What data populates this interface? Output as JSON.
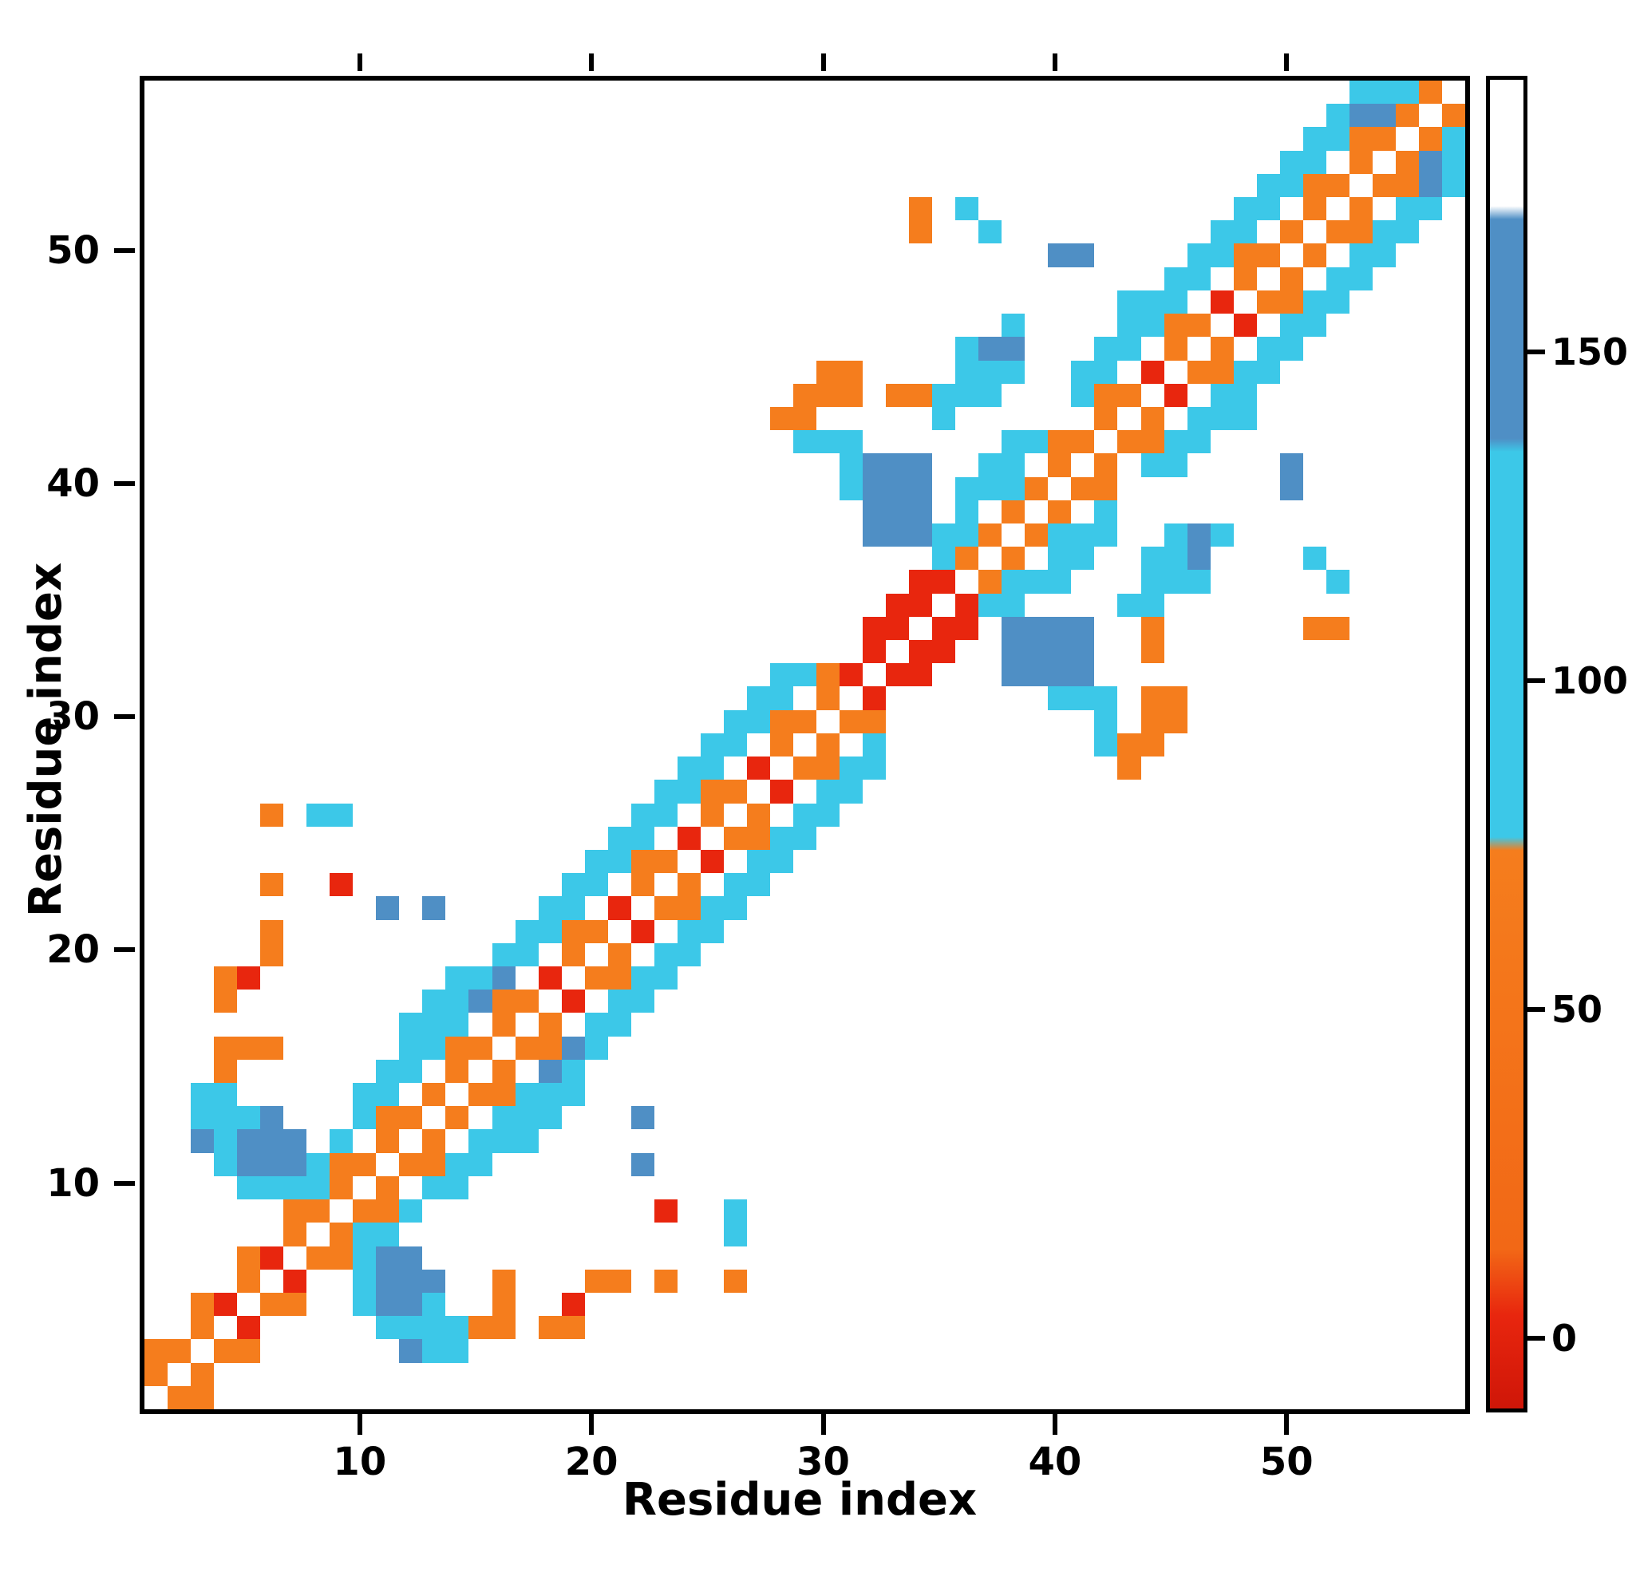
{
  "chart_data": {
    "type": "heatmap",
    "title": "",
    "xlabel": "Residue index",
    "ylabel": "Residue index",
    "n_residues": 57,
    "x_ticks": [
      10,
      20,
      30,
      40,
      50
    ],
    "y_ticks": [
      10,
      20,
      30,
      40,
      50
    ],
    "axis_range": [
      0.5,
      57.5
    ],
    "symmetric": true,
    "legend_position": "right-colorbar",
    "grid": false,
    "colors": {
      "r": "#e8260e",
      "o": "#f57d1d",
      "c": "#3cc8e8",
      "b": "#4f8fc5"
    },
    "color_value_ranges": {
      "r": "0-10",
      "o": "10-75",
      "c": "75-135",
      "b": "135-170",
      "white": "no contact"
    },
    "colorbar": {
      "ticks": [
        {
          "label": "150",
          "pos": 20.8
        },
        {
          "label": "100",
          "pos": 45.5
        },
        {
          "label": "50",
          "pos": 70.3
        },
        {
          "label": "0",
          "pos": 95.0
        }
      ],
      "gradient_stops": [
        [
          0,
          "#ffffff"
        ],
        [
          9.5,
          "#ffffff"
        ],
        [
          10.5,
          "#4f8fc5"
        ],
        [
          27,
          "#4f8fc5"
        ],
        [
          28,
          "#3cc8e8"
        ],
        [
          57,
          "#3cc8e8"
        ],
        [
          58,
          "#f57d1d"
        ],
        [
          88,
          "#f26816"
        ],
        [
          93,
          "#e8260e"
        ],
        [
          100,
          "#cf1608"
        ]
      ]
    },
    "cells": [
      [
        1,
        2,
        "o"
      ],
      [
        2,
        3,
        "o"
      ],
      [
        3,
        4,
        "o"
      ],
      [
        4,
        5,
        "r"
      ],
      [
        5,
        6,
        "o"
      ],
      [
        6,
        7,
        "r"
      ],
      [
        7,
        8,
        "o"
      ],
      [
        8,
        9,
        "o"
      ],
      [
        9,
        10,
        "o"
      ],
      [
        10,
        11,
        "o"
      ],
      [
        11,
        12,
        "o"
      ],
      [
        12,
        13,
        "o"
      ],
      [
        13,
        14,
        "o"
      ],
      [
        14,
        15,
        "o"
      ],
      [
        15,
        16,
        "o"
      ],
      [
        16,
        17,
        "o"
      ],
      [
        17,
        18,
        "o"
      ],
      [
        18,
        19,
        "r"
      ],
      [
        19,
        20,
        "o"
      ],
      [
        20,
        21,
        "o"
      ],
      [
        21,
        22,
        "r"
      ],
      [
        22,
        23,
        "o"
      ],
      [
        23,
        24,
        "o"
      ],
      [
        24,
        25,
        "r"
      ],
      [
        25,
        26,
        "o"
      ],
      [
        26,
        27,
        "o"
      ],
      [
        27,
        28,
        "r"
      ],
      [
        28,
        29,
        "o"
      ],
      [
        29,
        30,
        "o"
      ],
      [
        30,
        31,
        "o"
      ],
      [
        31,
        32,
        "r"
      ],
      [
        32,
        33,
        "r"
      ],
      [
        33,
        34,
        "r"
      ],
      [
        34,
        35,
        "r"
      ],
      [
        35,
        36,
        "r"
      ],
      [
        36,
        37,
        "o"
      ],
      [
        37,
        38,
        "o"
      ],
      [
        38,
        39,
        "o"
      ],
      [
        39,
        40,
        "o"
      ],
      [
        40,
        41,
        "o"
      ],
      [
        41,
        42,
        "o"
      ],
      [
        42,
        43,
        "o"
      ],
      [
        43,
        44,
        "o"
      ],
      [
        44,
        45,
        "r"
      ],
      [
        45,
        46,
        "o"
      ],
      [
        46,
        47,
        "o"
      ],
      [
        47,
        48,
        "r"
      ],
      [
        48,
        49,
        "o"
      ],
      [
        49,
        50,
        "o"
      ],
      [
        50,
        51,
        "o"
      ],
      [
        51,
        52,
        "o"
      ],
      [
        52,
        53,
        "o"
      ],
      [
        53,
        54,
        "o"
      ],
      [
        54,
        55,
        "o"
      ],
      [
        55,
        56,
        "o"
      ],
      [
        56,
        57,
        "o"
      ],
      [
        1,
        3,
        "o"
      ],
      [
        3,
        5,
        "o"
      ],
      [
        5,
        7,
        "o"
      ],
      [
        7,
        9,
        "o"
      ],
      [
        9,
        11,
        "o"
      ],
      [
        11,
        13,
        "o"
      ],
      [
        14,
        16,
        "o"
      ],
      [
        16,
        18,
        "o"
      ],
      [
        19,
        21,
        "o"
      ],
      [
        22,
        24,
        "o"
      ],
      [
        25,
        27,
        "o"
      ],
      [
        28,
        30,
        "o"
      ],
      [
        30,
        32,
        "o"
      ],
      [
        32,
        34,
        "r"
      ],
      [
        33,
        35,
        "r"
      ],
      [
        34,
        36,
        "r"
      ],
      [
        35,
        37,
        "c"
      ],
      [
        36,
        38,
        "c"
      ],
      [
        38,
        40,
        "c"
      ],
      [
        40,
        42,
        "o"
      ],
      [
        42,
        44,
        "o"
      ],
      [
        45,
        47,
        "o"
      ],
      [
        48,
        50,
        "o"
      ],
      [
        51,
        53,
        "o"
      ],
      [
        53,
        55,
        "o"
      ],
      [
        54,
        56,
        "b"
      ],
      [
        55,
        57,
        "c"
      ],
      [
        9,
        12,
        "c"
      ],
      [
        10,
        13,
        "c"
      ],
      [
        11,
        14,
        "c"
      ],
      [
        12,
        15,
        "c"
      ],
      [
        14,
        17,
        "c"
      ],
      [
        15,
        18,
        "b"
      ],
      [
        16,
        19,
        "b"
      ],
      [
        17,
        20,
        "c"
      ],
      [
        18,
        21,
        "c"
      ],
      [
        19,
        22,
        "c"
      ],
      [
        20,
        23,
        "c"
      ],
      [
        21,
        24,
        "c"
      ],
      [
        22,
        25,
        "c"
      ],
      [
        23,
        26,
        "c"
      ],
      [
        24,
        27,
        "c"
      ],
      [
        25,
        28,
        "c"
      ],
      [
        26,
        29,
        "c"
      ],
      [
        27,
        30,
        "c"
      ],
      [
        28,
        31,
        "c"
      ],
      [
        29,
        32,
        "c"
      ],
      [
        35,
        38,
        "c"
      ],
      [
        36,
        39,
        "c"
      ],
      [
        37,
        40,
        "c"
      ],
      [
        38,
        41,
        "c"
      ],
      [
        39,
        42,
        "c"
      ],
      [
        41,
        44,
        "c"
      ],
      [
        42,
        45,
        "c"
      ],
      [
        43,
        46,
        "c"
      ],
      [
        44,
        47,
        "c"
      ],
      [
        45,
        48,
        "c"
      ],
      [
        46,
        49,
        "c"
      ],
      [
        47,
        50,
        "c"
      ],
      [
        48,
        51,
        "c"
      ],
      [
        49,
        52,
        "c"
      ],
      [
        50,
        53,
        "c"
      ],
      [
        51,
        54,
        "c"
      ],
      [
        52,
        55,
        "c"
      ],
      [
        53,
        56,
        "b"
      ],
      [
        54,
        57,
        "c"
      ],
      [
        14,
        18,
        "c"
      ],
      [
        15,
        19,
        "c"
      ],
      [
        16,
        20,
        "c"
      ],
      [
        17,
        21,
        "c"
      ],
      [
        18,
        22,
        "c"
      ],
      [
        19,
        23,
        "c"
      ],
      [
        20,
        24,
        "c"
      ],
      [
        21,
        25,
        "c"
      ],
      [
        22,
        26,
        "c"
      ],
      [
        23,
        27,
        "c"
      ],
      [
        24,
        28,
        "c"
      ],
      [
        25,
        29,
        "c"
      ],
      [
        26,
        30,
        "c"
      ],
      [
        27,
        31,
        "c"
      ],
      [
        28,
        32,
        "c"
      ],
      [
        36,
        40,
        "c"
      ],
      [
        37,
        41,
        "c"
      ],
      [
        38,
        42,
        "c"
      ],
      [
        41,
        45,
        "c"
      ],
      [
        42,
        46,
        "c"
      ],
      [
        43,
        47,
        "c"
      ],
      [
        44,
        48,
        "c"
      ],
      [
        45,
        49,
        "c"
      ],
      [
        46,
        50,
        "c"
      ],
      [
        47,
        51,
        "c"
      ],
      [
        48,
        52,
        "c"
      ],
      [
        49,
        53,
        "c"
      ],
      [
        50,
        54,
        "c"
      ],
      [
        51,
        55,
        "c"
      ],
      [
        52,
        56,
        "c"
      ],
      [
        53,
        57,
        "c"
      ],
      [
        3,
        12,
        "b"
      ],
      [
        3,
        13,
        "c"
      ],
      [
        3,
        14,
        "c"
      ],
      [
        4,
        11,
        "c"
      ],
      [
        4,
        12,
        "c"
      ],
      [
        4,
        13,
        "c"
      ],
      [
        4,
        14,
        "c"
      ],
      [
        4,
        15,
        "o"
      ],
      [
        4,
        16,
        "o"
      ],
      [
        5,
        10,
        "c"
      ],
      [
        5,
        11,
        "b"
      ],
      [
        5,
        12,
        "b"
      ],
      [
        5,
        13,
        "c"
      ],
      [
        6,
        10,
        "c"
      ],
      [
        6,
        11,
        "b"
      ],
      [
        6,
        12,
        "b"
      ],
      [
        6,
        13,
        "b"
      ],
      [
        7,
        10,
        "c"
      ],
      [
        7,
        11,
        "b"
      ],
      [
        7,
        12,
        "b"
      ],
      [
        8,
        10,
        "c"
      ],
      [
        8,
        11,
        "c"
      ],
      [
        10,
        14,
        "c"
      ],
      [
        11,
        15,
        "c"
      ],
      [
        12,
        16,
        "c"
      ],
      [
        12,
        17,
        "c"
      ],
      [
        13,
        16,
        "c"
      ],
      [
        13,
        17,
        "c"
      ],
      [
        13,
        18,
        "c"
      ],
      [
        14,
        19,
        "c"
      ],
      [
        29,
        42,
        "c"
      ],
      [
        30,
        42,
        "c"
      ],
      [
        31,
        40,
        "c"
      ],
      [
        31,
        41,
        "c"
      ],
      [
        31,
        42,
        "c"
      ],
      [
        32,
        38,
        "b"
      ],
      [
        32,
        39,
        "b"
      ],
      [
        32,
        40,
        "b"
      ],
      [
        32,
        41,
        "b"
      ],
      [
        33,
        38,
        "b"
      ],
      [
        33,
        39,
        "b"
      ],
      [
        33,
        40,
        "b"
      ],
      [
        33,
        41,
        "b"
      ],
      [
        34,
        38,
        "b"
      ],
      [
        34,
        39,
        "b"
      ],
      [
        34,
        40,
        "b"
      ],
      [
        34,
        41,
        "b"
      ],
      [
        28,
        43,
        "o"
      ],
      [
        29,
        43,
        "o"
      ],
      [
        29,
        44,
        "o"
      ],
      [
        30,
        44,
        "o"
      ],
      [
        30,
        45,
        "o"
      ],
      [
        31,
        44,
        "o"
      ],
      [
        31,
        45,
        "o"
      ],
      [
        33,
        44,
        "o"
      ],
      [
        34,
        44,
        "o"
      ],
      [
        35,
        43,
        "c"
      ],
      [
        35,
        44,
        "c"
      ],
      [
        36,
        44,
        "c"
      ],
      [
        36,
        45,
        "c"
      ],
      [
        36,
        46,
        "c"
      ],
      [
        37,
        44,
        "c"
      ],
      [
        37,
        45,
        "c"
      ],
      [
        37,
        46,
        "b"
      ],
      [
        38,
        45,
        "c"
      ],
      [
        38,
        46,
        "b"
      ],
      [
        38,
        47,
        "c"
      ],
      [
        4,
        18,
        "o"
      ],
      [
        4,
        19,
        "o"
      ],
      [
        5,
        16,
        "o"
      ],
      [
        5,
        19,
        "r"
      ],
      [
        6,
        16,
        "o"
      ],
      [
        6,
        20,
        "o"
      ],
      [
        6,
        21,
        "o"
      ],
      [
        6,
        23,
        "o"
      ],
      [
        6,
        26,
        "o"
      ],
      [
        8,
        26,
        "c"
      ],
      [
        9,
        23,
        "r"
      ],
      [
        9,
        26,
        "c"
      ],
      [
        11,
        22,
        "b"
      ],
      [
        13,
        22,
        "b"
      ],
      [
        34,
        51,
        "o"
      ],
      [
        34,
        52,
        "o"
      ],
      [
        36,
        52,
        "c"
      ],
      [
        37,
        51,
        "c"
      ],
      [
        40,
        50,
        "b"
      ],
      [
        41,
        50,
        "b"
      ],
      [
        43,
        48,
        "c"
      ]
    ]
  }
}
